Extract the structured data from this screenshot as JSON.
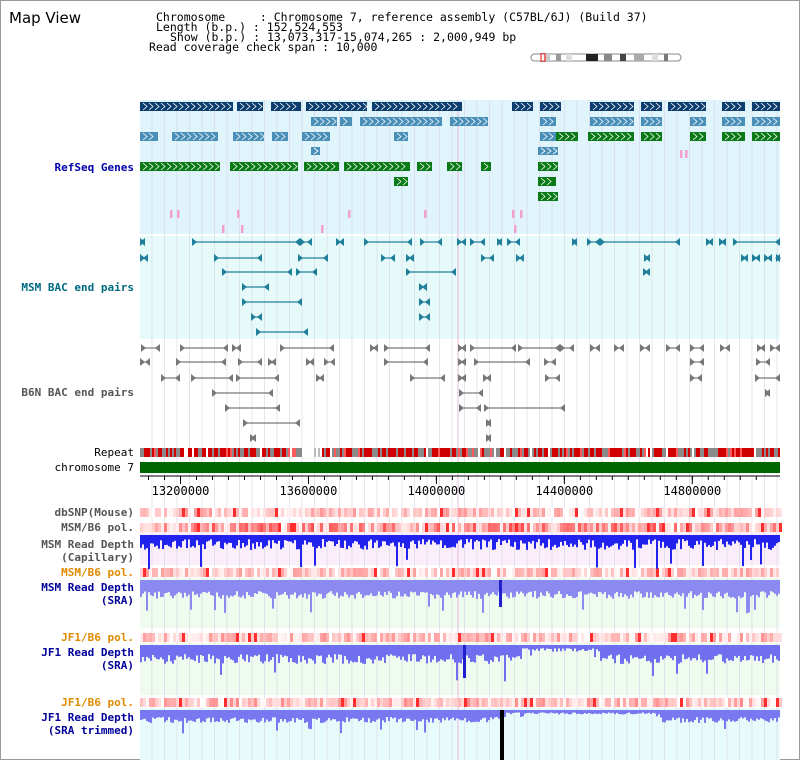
{
  "window": {
    "title": "Map View"
  },
  "header": {
    "chromosome_label": "Chromosome     : ",
    "chromosome_value": "Chromosome 7, reference assembly (C57BL/6J) (Build 37)",
    "length_label": "Length (b.p.) : ",
    "length_value": "152,524,553",
    "show_label": "Show (b.p.) : ",
    "show_value": "13,073,317-15,074,265 : 2,000,949 bp",
    "coverage_label": "Read coverage check span : ",
    "coverage_value": "10,000"
  },
  "view": {
    "start": 13073317,
    "end": 15074265
  },
  "colors": {
    "refseq_bg": "#dff4fb",
    "msm_bg": "#e6fafa",
    "refseq_label": "#0000aa",
    "msm_label": "#006a80",
    "orange_label": "#e08a00",
    "blue_label": "#000099",
    "chromosome_bar": "#006600",
    "read_depth": "#3333ff"
  },
  "tracks": {
    "refseq": "RefSeq Genes",
    "msm_bac": "MSM BAC end pairs",
    "b6n_bac": "B6N BAC end pairs",
    "repeat": "Repeat",
    "chromosome": "chromosome 7",
    "dbsnp": "dbSNP(Mouse)",
    "msm_b6_pol": "MSM/B6 pol.",
    "msm_depth_cap_1": "MSM Read Depth",
    "msm_depth_cap_2": "(Capillary)",
    "msm_b6_pol2": "MSM/B6 pol.",
    "msm_depth_sra_1": "MSM Read Depth",
    "msm_depth_sra_2": "(SRA)",
    "jf1_b6_pol": "JF1/B6 pol.",
    "jf1_depth_sra_1": "JF1 Read Depth",
    "jf1_depth_sra_2": "(SRA)",
    "jf1_b6_pol2": "JF1/B6 pol.",
    "jf1_depth_trim_1": "JF1 Read Depth",
    "jf1_depth_trim_2": "(SRA trimmed)"
  },
  "axis": {
    "ticks": [
      {
        "pos": 13200000,
        "label": "13200000"
      },
      {
        "pos": 13600000,
        "label": "13600000"
      },
      {
        "pos": 14000000,
        "label": "14000000"
      },
      {
        "pos": 14400000,
        "label": "14400000"
      },
      {
        "pos": 14800000,
        "label": "14800000"
      }
    ]
  }
}
